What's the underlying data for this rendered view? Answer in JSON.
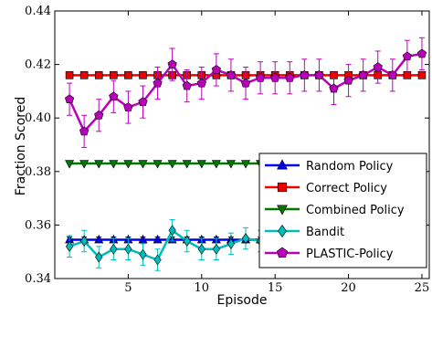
{
  "chart_data": {
    "type": "line",
    "xlabel": "Episode",
    "ylabel": "Fraction Scored",
    "xlim": [
      0,
      25.5
    ],
    "ylim": [
      0.34,
      0.44
    ],
    "x_ticks": [
      5,
      10,
      15,
      20,
      25
    ],
    "x_tick_labels": [
      "5",
      "10",
      "15",
      "20",
      "25"
    ],
    "y_ticks": [
      0.34,
      0.36,
      0.38,
      0.4,
      0.42,
      0.44
    ],
    "y_tick_labels": [
      "0.34",
      "0.36",
      "0.38",
      "0.40",
      "0.42",
      "0.44"
    ],
    "x": [
      1,
      2,
      3,
      4,
      5,
      6,
      7,
      8,
      9,
      10,
      11,
      12,
      13,
      14,
      15,
      16,
      17,
      18,
      19,
      20,
      21,
      22,
      23,
      24,
      25
    ],
    "legend_position": "right",
    "series": [
      {
        "name": "Random Policy",
        "color": "#0000ee",
        "marker": "triangle-up",
        "values": [
          0.3545,
          0.3545,
          0.3545,
          0.3545,
          0.3545,
          0.3545,
          0.3545,
          0.3545,
          0.3545,
          0.3545,
          0.3545,
          0.3545,
          0.3545,
          0.3545,
          0.3545,
          0.3545,
          0.3545,
          0.3545,
          0.3545,
          0.3545,
          0.3545,
          0.3545,
          0.3545,
          0.3545,
          0.3545
        ],
        "errors": [
          0.001,
          0.001,
          0.001,
          0.001,
          0.001,
          0.001,
          0.001,
          0.001,
          0.001,
          0.001,
          0.001,
          0.001,
          0.001,
          0.001,
          0.001,
          0.001,
          0.001,
          0.001,
          0.001,
          0.001,
          0.001,
          0.001,
          0.001,
          0.001,
          0.001
        ]
      },
      {
        "name": "Correct Policy",
        "color": "#ee0000",
        "marker": "square",
        "values": [
          0.416,
          0.416,
          0.416,
          0.416,
          0.416,
          0.416,
          0.416,
          0.416,
          0.416,
          0.416,
          0.416,
          0.416,
          0.416,
          0.416,
          0.416,
          0.416,
          0.416,
          0.416,
          0.416,
          0.416,
          0.416,
          0.416,
          0.416,
          0.416,
          0.416
        ],
        "errors": [
          0,
          0,
          0,
          0,
          0,
          0,
          0,
          0,
          0,
          0,
          0,
          0,
          0,
          0,
          0,
          0,
          0,
          0,
          0,
          0,
          0,
          0,
          0,
          0,
          0
        ]
      },
      {
        "name": "Combined Policy",
        "color": "#007700",
        "marker": "triangle-down",
        "values": [
          0.383,
          0.383,
          0.383,
          0.383,
          0.383,
          0.383,
          0.383,
          0.383,
          0.383,
          0.383,
          0.383,
          0.383,
          0.383,
          0.383,
          0.383,
          0.383,
          0.383,
          0.383,
          0.383,
          0.383,
          0.383,
          0.383,
          0.383,
          0.383,
          0.383
        ],
        "errors": [
          0,
          0,
          0,
          0,
          0,
          0,
          0,
          0,
          0,
          0,
          0,
          0,
          0,
          0,
          0,
          0,
          0,
          0,
          0,
          0,
          0,
          0,
          0,
          0,
          0
        ]
      },
      {
        "name": "Bandit",
        "color": "#00bbbb",
        "marker": "diamond",
        "values": [
          0.352,
          0.354,
          0.348,
          0.351,
          0.351,
          0.349,
          0.347,
          0.358,
          0.354,
          0.351,
          0.351,
          0.353,
          0.355,
          0.354,
          0.359,
          0.35,
          0.355,
          0.355,
          0.358,
          0.354,
          0.353,
          0.358,
          0.358,
          0.355,
          0.355
        ],
        "errors": [
          0.004,
          0.004,
          0.004,
          0.004,
          0.004,
          0.004,
          0.004,
          0.004,
          0.004,
          0.004,
          0.004,
          0.004,
          0.004,
          0.004,
          0.006,
          0.004,
          0.004,
          0.004,
          0.004,
          0.004,
          0.004,
          0.004,
          0.004,
          0.004,
          0.004
        ]
      },
      {
        "name": "PLASTIC-Policy",
        "color": "#bb00bb",
        "marker": "pentagon",
        "values": [
          0.407,
          0.395,
          0.401,
          0.408,
          0.404,
          0.406,
          0.413,
          0.42,
          0.412,
          0.413,
          0.418,
          0.416,
          0.413,
          0.415,
          0.415,
          0.415,
          0.416,
          0.416,
          0.411,
          0.414,
          0.416,
          0.419,
          0.416,
          0.423,
          0.424
        ],
        "errors": [
          0.006,
          0.006,
          0.006,
          0.006,
          0.006,
          0.006,
          0.006,
          0.006,
          0.006,
          0.006,
          0.006,
          0.006,
          0.006,
          0.006,
          0.006,
          0.006,
          0.006,
          0.006,
          0.006,
          0.006,
          0.006,
          0.006,
          0.006,
          0.006,
          0.006
        ]
      }
    ]
  }
}
